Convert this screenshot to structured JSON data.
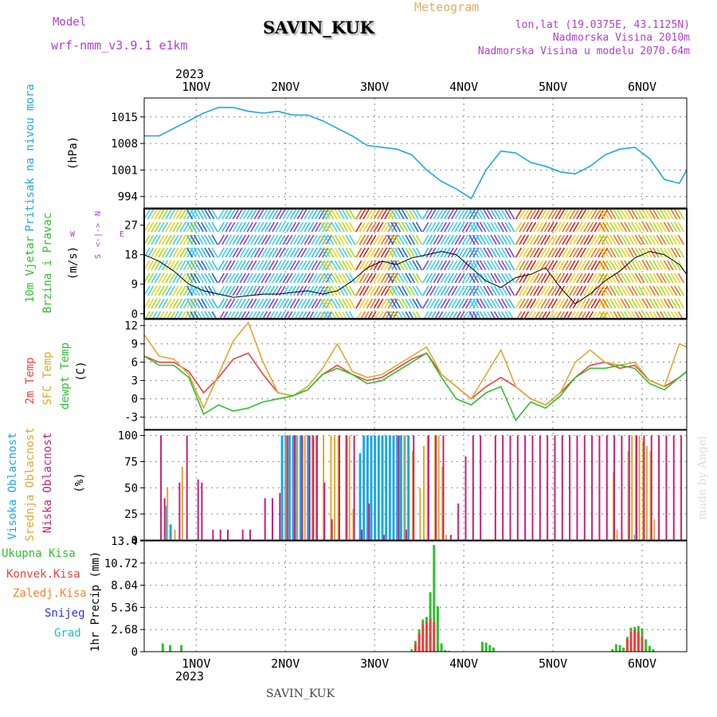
{
  "header": {
    "model_label": "Model",
    "model_name": "wrf-nmm_v3.9.1 e1km",
    "station": "SAVIN_KUK",
    "meteogram_label": "Meteogram",
    "lonlat": "lon,lat (19.0375E, 43.1125N)",
    "elevation": "Nadmorska Visina 2010m",
    "model_elevation": "Nadmorska Visina u modelu 2070.64m",
    "year": "2023",
    "footer_station": "SAVIN_KUK",
    "credit": "made by Angel"
  },
  "colors": {
    "pressure": "#1ea7e6",
    "temp2m": "#f04040",
    "sfc": "#e0a830",
    "dewpt": "#30c030",
    "high_cloud": "#1ea7e6",
    "mid_cloud": "#e0a830",
    "low_cloud": "#c8207a",
    "total_precip": "#30c030",
    "conv_precip": "#f04040",
    "frz_precip": "#ff8030",
    "snow": "#3030e0",
    "grad": "#20c0c0",
    "wind_compass": "#b040d0",
    "model_text": "#b040d0",
    "meteogram_text": "#e0b060"
  },
  "time_axis": {
    "days": [
      "1NOV",
      "2NOV",
      "3NOV",
      "4NOV",
      "5NOV",
      "6NOV"
    ]
  },
  "panels": {
    "pressure": {
      "labels": [
        "Pritisak na nivou mora",
        "(hPa)"
      ]
    },
    "wind": {
      "labels": [
        "10m Vjetar",
        "Brzina i Pravac",
        "(m/s)"
      ],
      "compass": [
        "N",
        "W",
        "<-|->",
        "E",
        "S"
      ]
    },
    "temp": {
      "labels": [
        "2m Temp",
        "SFC Temp",
        "dewpt Temp",
        "(C)"
      ]
    },
    "cloud": {
      "labels": [
        "Visoka Oblacnost",
        "Srednja Oblacnost",
        "Niska Oblacnost",
        "(%)"
      ]
    },
    "precip": {
      "labels": [
        "Ukupna Kisa",
        "Konvek.Kisa",
        "Zaledj.Kisa",
        "Snijeg",
        "Grad",
        "1hr Precip (mm)"
      ]
    }
  },
  "chart_data": [
    {
      "type": "line",
      "title": "Pritisak na nivou mora",
      "ylabel": "(hPa)",
      "ylim": [
        991,
        1020
      ],
      "yticks": [
        994,
        1001,
        1008,
        1015
      ],
      "x_unit": "hours from 00 UTC 1 NOV 2023",
      "xlim": [
        -14,
        132
      ],
      "series": [
        {
          "name": "Pritisak na nivou mora",
          "x": [
            -14,
            -10,
            -6,
            -2,
            2,
            6,
            10,
            14,
            18,
            22,
            26,
            30,
            34,
            38,
            42,
            46,
            50,
            54,
            58,
            62,
            66,
            70,
            74,
            78,
            82,
            86,
            90,
            94,
            98,
            102,
            106,
            110,
            114,
            118,
            122,
            126,
            130,
            132
          ],
          "y": [
            1010,
            1010,
            1012,
            1014,
            1016,
            1017.5,
            1017.5,
            1016.5,
            1016,
            1016.5,
            1015.5,
            1015.5,
            1014,
            1012,
            1010,
            1007.5,
            1007,
            1006.5,
            1005,
            1001,
            998,
            996,
            993.5,
            1001,
            1006,
            1005.5,
            1003,
            1002,
            1000.5,
            1000,
            1002,
            1005,
            1006.5,
            1007,
            1004,
            998.5,
            997.5,
            1001
          ]
        }
      ]
    },
    {
      "type": "line",
      "title": "10m Vjetar Brzina i Pravac",
      "ylabel": "(m/s)",
      "ylim": [
        -1.5,
        32
      ],
      "yticks": [
        0,
        9,
        18,
        27
      ],
      "x_unit": "hours from 00 UTC 1 NOV 2023",
      "xlim": [
        -14,
        132
      ],
      "series": [
        {
          "name": "Brzina",
          "x": [
            -14,
            -10,
            -6,
            -2,
            2,
            6,
            10,
            14,
            18,
            22,
            26,
            30,
            34,
            38,
            42,
            46,
            50,
            54,
            58,
            62,
            66,
            70,
            74,
            78,
            82,
            86,
            90,
            94,
            98,
            102,
            106,
            110,
            114,
            118,
            122,
            126,
            130,
            132
          ],
          "y": [
            18,
            16,
            13,
            9,
            7,
            6,
            5,
            5.5,
            6,
            6,
            6.5,
            7,
            6,
            7,
            10,
            14,
            16,
            15,
            17,
            18,
            19,
            18,
            14,
            10,
            8,
            11,
            12,
            14,
            8,
            3,
            6,
            10,
            13,
            17,
            19,
            18,
            15,
            12
          ]
        }
      ]
    },
    {
      "type": "line",
      "title": "2m Temp / SFC Temp / dewpt Temp",
      "ylabel": "(C)",
      "ylim": [
        -5,
        13
      ],
      "yticks": [
        -3,
        0,
        3,
        6,
        9,
        12
      ],
      "x_unit": "hours from 00 UTC 1 NOV 2023",
      "xlim": [
        -14,
        132
      ],
      "series": [
        {
          "name": "2m Temp",
          "x": [
            -14,
            -10,
            -6,
            -2,
            2,
            6,
            10,
            14,
            18,
            22,
            26,
            30,
            34,
            38,
            42,
            46,
            50,
            54,
            58,
            62,
            66,
            70,
            74,
            78,
            82,
            86,
            90,
            94,
            98,
            102,
            106,
            110,
            114,
            118,
            122,
            126,
            130,
            132
          ],
          "y": [
            7,
            6,
            6,
            4.5,
            1,
            3.5,
            6.5,
            7.5,
            4,
            1,
            0.5,
            1.5,
            4,
            5.5,
            4,
            3,
            3.5,
            5,
            6.5,
            7.5,
            4,
            2,
            0,
            2,
            3.5,
            2,
            0,
            -1,
            1,
            3.5,
            5.5,
            6,
            5,
            5.5,
            3,
            2,
            3.5,
            4.5
          ]
        },
        {
          "name": "SFC Temp",
          "x": [
            -14,
            -10,
            -6,
            -2,
            2,
            6,
            10,
            14,
            18,
            22,
            26,
            30,
            34,
            38,
            42,
            46,
            50,
            54,
            58,
            62,
            66,
            70,
            74,
            78,
            82,
            86,
            90,
            94,
            98,
            102,
            106,
            110,
            114,
            118,
            122,
            126,
            130,
            132
          ],
          "y": [
            10.5,
            7,
            6.5,
            4,
            -1.5,
            4,
            9.5,
            12.5,
            6,
            1,
            0.5,
            2,
            5,
            9,
            4.5,
            3.5,
            4,
            5.5,
            7,
            8.5,
            4,
            2,
            0,
            4,
            8,
            2,
            0,
            -1,
            1,
            6,
            8,
            6,
            5.5,
            6,
            3,
            2,
            9,
            8.5
          ]
        },
        {
          "name": "dewpt Temp",
          "x": [
            -14,
            -10,
            -6,
            -2,
            2,
            6,
            10,
            14,
            18,
            22,
            26,
            30,
            34,
            38,
            42,
            46,
            50,
            54,
            58,
            62,
            66,
            70,
            74,
            78,
            82,
            86,
            90,
            94,
            98,
            102,
            106,
            110,
            114,
            118,
            122,
            126,
            130,
            132
          ],
          "y": [
            7,
            5.5,
            5.5,
            3.5,
            -2.5,
            -1,
            -2,
            -1.5,
            -0.5,
            0,
            0.5,
            1.5,
            4,
            5,
            4,
            2.5,
            3,
            4.5,
            6,
            7.5,
            3.5,
            0,
            -1,
            1,
            2,
            -3.5,
            -0.5,
            -1.5,
            0.5,
            3.5,
            5,
            5,
            5.5,
            5,
            2.5,
            1.5,
            3.5,
            4.5
          ]
        }
      ]
    },
    {
      "type": "bar",
      "title": "Visoka / Srednja / Niska Oblacnost",
      "ylabel": "(%)",
      "ylim": [
        0,
        105
      ],
      "yticks": [
        0,
        25,
        50,
        75,
        100
      ],
      "x_unit": "hours from 00 UTC 1 NOV 2023",
      "xlim": [
        -14,
        132
      ],
      "series": [
        {
          "name": "Visoka Oblacnost",
          "x": [
            -8,
            -7,
            23,
            24,
            25,
            26,
            27,
            28,
            30,
            44,
            45,
            46,
            47,
            48,
            49,
            50,
            51,
            52,
            53,
            54,
            55,
            56,
            57,
            118
          ],
          "y": [
            33,
            15,
            100,
            100,
            100,
            100,
            100,
            100,
            100,
            83,
            100,
            100,
            100,
            100,
            100,
            100,
            100,
            100,
            100,
            100,
            100,
            100,
            100,
            5
          ]
        },
        {
          "name": "Srednja Oblacnost",
          "x": [
            -8,
            -6,
            -4,
            24,
            27,
            29,
            31,
            32,
            34,
            36,
            37,
            38,
            40,
            41,
            42,
            56,
            58,
            60,
            61,
            62,
            64,
            65,
            66,
            67,
            112,
            113,
            116,
            117,
            118,
            119,
            120,
            121,
            122,
            123
          ],
          "y": [
            50,
            10,
            70,
            100,
            100,
            100,
            100,
            100,
            100,
            100,
            100,
            100,
            100,
            100,
            30,
            100,
            85,
            50,
            90,
            100,
            100,
            100,
            70,
            5,
            65,
            10,
            85,
            100,
            100,
            100,
            95,
            90,
            85,
            20
          ]
        },
        {
          "name": "Niska Oblacnost",
          "x": [
            -10,
            -9,
            -5,
            -3,
            0,
            1,
            4,
            6,
            8,
            12,
            14,
            18,
            20,
            22,
            24,
            26,
            28,
            30,
            31,
            32,
            34,
            36,
            38,
            40,
            42,
            44,
            46,
            50,
            54,
            56,
            58,
            62,
            64,
            66,
            68,
            70,
            72,
            74,
            76,
            80,
            82,
            84,
            86,
            88,
            90,
            92,
            94,
            96,
            98,
            100,
            102,
            104,
            106,
            108,
            110,
            112,
            114,
            116,
            118,
            120,
            122,
            124,
            126,
            128,
            130
          ],
          "y": [
            100,
            40,
            55,
            100,
            58,
            55,
            10,
            10,
            10,
            10,
            10,
            40,
            40,
            45,
            100,
            100,
            100,
            100,
            100,
            100,
            55,
            20,
            100,
            100,
            100,
            10,
            35,
            5,
            100,
            10,
            100,
            100,
            100,
            100,
            5,
            35,
            80,
            100,
            100,
            100,
            100,
            100,
            100,
            100,
            100,
            100,
            100,
            100,
            100,
            100,
            100,
            100,
            100,
            100,
            100,
            100,
            100,
            100,
            100,
            100,
            100,
            100,
            100,
            100,
            100
          ]
        }
      ]
    },
    {
      "type": "bar",
      "title": "1hr Precip",
      "ylabel": "1hr Precip (mm)",
      "ylim": [
        0,
        13.4
      ],
      "yticks": [
        0,
        2.68,
        5.36,
        8.04,
        10.72,
        13.4
      ],
      "x_unit": "hours from 00 UTC 1 NOV 2023",
      "xlim": [
        -14,
        132
      ],
      "series": [
        {
          "name": "Ukupna Kisa",
          "x": [
            -9,
            -7,
            -4,
            58,
            59,
            60,
            61,
            62,
            63,
            64,
            65,
            66,
            67,
            68,
            77,
            78,
            79,
            80,
            112,
            113,
            114,
            115,
            116,
            117,
            118,
            119,
            120,
            121,
            122,
            123
          ],
          "y": [
            1,
            0.8,
            0.8,
            0.3,
            1.3,
            2.7,
            3.9,
            4.2,
            7.2,
            12.9,
            5.5,
            1.0,
            0.2,
            0.1,
            1.2,
            1.1,
            0.8,
            0.5,
            0.3,
            0.9,
            0.8,
            0.5,
            1.8,
            2.9,
            3.0,
            3.1,
            2.8,
            1.5,
            0.7,
            0.3
          ]
        },
        {
          "name": "Konvek.Kisa",
          "x": [
            59,
            60,
            61,
            62,
            63,
            64,
            116,
            117,
            118,
            119,
            120
          ],
          "y": [
            0.9,
            2.2,
            3.3,
            3.6,
            4.0,
            3.6,
            1.5,
            2.4,
            2.6,
            2.4,
            1.8
          ]
        }
      ]
    },
    {
      "type": "heatmap",
      "title": "10m Vjetar Brzina i Pravac (barb colouring)",
      "x_unit": "hours from 00 UTC 1 NOV 2023",
      "bands": [
        {
          "x_start": -14,
          "x_end": -1,
          "colors": [
            "#f0d020",
            "#a0e020",
            "#40d0f0"
          ]
        },
        {
          "x_start": -1,
          "x_end": 6,
          "colors": [
            "#40d0f0",
            "#30c0e0",
            "#2060f0"
          ]
        },
        {
          "x_start": 6,
          "x_end": 35,
          "colors": [
            "#40d0f0",
            "#30c0e0",
            "#8040e0"
          ]
        },
        {
          "x_start": 35,
          "x_end": 43,
          "colors": [
            "#40d0f0",
            "#a0e020",
            "#f0d020"
          ]
        },
        {
          "x_start": 43,
          "x_end": 53,
          "colors": [
            "#f0d020",
            "#f07020",
            "#e02020"
          ]
        },
        {
          "x_start": 53,
          "x_end": 61,
          "colors": [
            "#a0e020",
            "#40d0f0",
            "#2060f0"
          ]
        },
        {
          "x_start": 61,
          "x_end": 75,
          "colors": [
            "#40d0f0",
            "#30c0e0",
            "#8040e0"
          ]
        },
        {
          "x_start": 75,
          "x_end": 86,
          "colors": [
            "#30c0e0",
            "#40d0f0",
            "#8040e0"
          ]
        },
        {
          "x_start": 86,
          "x_end": 110,
          "colors": [
            "#f0d020",
            "#f07020",
            "#e02020"
          ]
        },
        {
          "x_start": 110,
          "x_end": 132,
          "colors": [
            "#f0d020",
            "#f07020",
            "#a0e020"
          ]
        }
      ]
    }
  ]
}
